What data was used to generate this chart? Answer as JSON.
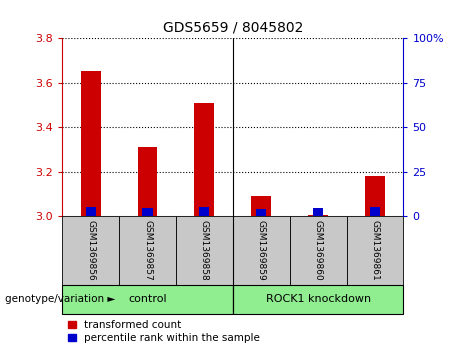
{
  "title": "GDS5659 / 8045802",
  "samples": [
    "GSM1369856",
    "GSM1369857",
    "GSM1369858",
    "GSM1369859",
    "GSM1369860",
    "GSM1369861"
  ],
  "red_values": [
    3.65,
    3.31,
    3.51,
    3.09,
    3.003,
    3.18
  ],
  "blue_values": [
    3.042,
    3.038,
    3.042,
    3.03,
    3.038,
    3.042
  ],
  "baseline": 3.0,
  "ylim_left": [
    3.0,
    3.8
  ],
  "ylim_right": [
    0,
    100
  ],
  "yticks_left": [
    3.0,
    3.2,
    3.4,
    3.6,
    3.8
  ],
  "yticks_right": [
    0,
    25,
    50,
    75,
    100
  ],
  "legend_red": "transformed count",
  "legend_blue": "percentile rank within the sample",
  "red_color": "#CC0000",
  "blue_color": "#0000CC",
  "bar_width": 0.35,
  "blue_bar_width": 0.18,
  "cell_bg_color": "#C8C8C8",
  "plot_bg": "#FFFFFF",
  "group_bg": "#90EE90",
  "control_label": "control",
  "knockdown_label": "ROCK1 knockdown",
  "genotype_label": "genotype/variation",
  "n_control": 3,
  "n_knockdown": 3
}
